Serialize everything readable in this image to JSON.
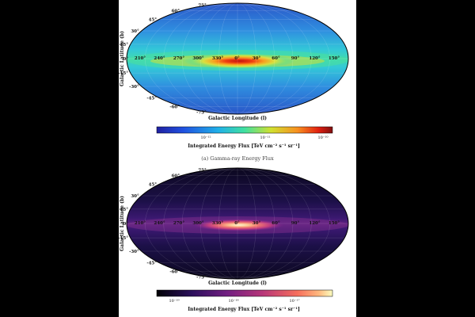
{
  "panels": [
    {
      "id": "gamma",
      "colormap": "jet",
      "xlabel": "Galactic Longitude (l)",
      "ylabel": "Galactic Latitude (b)",
      "lon_ticks": [
        "210°",
        "240°",
        "270°",
        "300°",
        "330°",
        "0°",
        "30°",
        "60°",
        "90°",
        "120°",
        "150°"
      ],
      "lat_ticks": [
        "75°",
        "60°",
        "45°",
        "30°",
        "15°",
        "0°",
        "-15°",
        "-30°",
        "-45°",
        "-60°",
        "-75°"
      ],
      "colorbar_ticks": [
        "10⁻¹²",
        "10⁻¹¹",
        "10⁻¹⁰"
      ],
      "colorbar_label": "Integrated Energy Flux [TeV cm⁻² s⁻¹ sr⁻¹]",
      "caption": "(a) Gamma-ray Energy Flux"
    },
    {
      "id": "neutrino",
      "colormap": "magma",
      "xlabel": "Galactic Longitude (l)",
      "ylabel": "Galactic Latitude (b)",
      "lon_ticks": [
        "210°",
        "240°",
        "270°",
        "300°",
        "330°",
        "0°",
        "30°",
        "60°",
        "90°",
        "120°",
        "150°"
      ],
      "lat_ticks": [
        "75°",
        "60°",
        "45°",
        "30°",
        "15°",
        "0°",
        "-15°",
        "-30°",
        "-45°",
        "-60°",
        "-75°"
      ],
      "colorbar_ticks": [
        "10⁻¹⁹",
        "10⁻¹⁸",
        "10⁻¹⁷"
      ],
      "colorbar_label": "Integrated Energy Flux [TeV cm⁻² s⁻¹ sr⁻¹]",
      "caption": ""
    }
  ]
}
